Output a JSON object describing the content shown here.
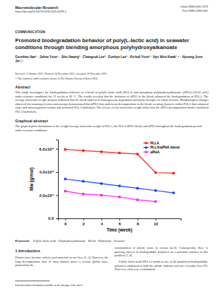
{
  "header": {
    "journal": "Macromolecular Research",
    "doi": "https://doi.org/10.1007/s13233-023-00239-1",
    "online_issn": "Online ISSN 2092-7673",
    "print_issn": "Print ISSN 1598-5032"
  },
  "article_type": "COMMUNICATION",
  "title": "Promoted biodegradation behavior of poly(L-lactic acid) in seawater conditions through blending amorphous polyhydroxyalkanoate",
  "authors": "Geonhee Han¹ · Juhee Yoon¹ · Jiho Hwang² · Changsuk Lee³ · Eunhye Lee³ · Kichull Yoon³ · Hyo Won Kwak¹,⁴ · Hyoung-Joon Jin¹,⁵",
  "dates": "Received: 11 October 2023 / Revised: 24 November 2023 / Accepted: 30 November 2023",
  "copyright": "© The Author(s), under exclusive licence to The Polymer Society of Korea 2024",
  "abstract": {
    "heading": "Abstract",
    "text": "This study investigates the biodegradation behavior of a blend of poly(L-lactic acid) (PLLA) and amorphous polyhydroxyalkanoate (aPHA) (50:50 wt%) under seawater conditions for 12 weeks at 30 °C. The results revealed that the inclusion of aPHA in the blend enhanced the biodegradation of PLLA. The average molecular weight analysis indicated that the blend underwent homogeneous degradation primarily through exo-chain scission. Morphological changes observed via scanning electron microscopy demonstrated that aPHA first underwent decomposition in the blend, creating channels within PLLA that enhanced water and microorganism contact and promoted PLLA hydrolysis. The release of low-molecular-weight acids from the aPHA decomposition further facilitated PLLA hydrolysis."
  },
  "graphical_abstract": {
    "heading": "Graphical abstract",
    "caption": "The graph depicts fluctuations in the weight-average molecular weight of PLLA, the PLLA/aPHA blend, and aPHA throughout the biodegradation period under seawater conditions."
  },
  "chart_data": {
    "type": "line",
    "x_label": "Time (week)",
    "y_label": "Mw (g/mol)",
    "x": [
      0,
      2,
      4,
      6,
      8,
      10,
      12
    ],
    "series": [
      {
        "name": "PLLA",
        "color": "#ff1a1a",
        "marker": "square",
        "values": [
          595000,
          585000,
          575000,
          565000,
          555000,
          395000,
          390000
        ]
      },
      {
        "name": "PLLA/aPHA blend",
        "color": "#1a3cff",
        "marker": "square",
        "values": [
          340000,
          320000,
          300000,
          280000,
          260000,
          240000,
          220000
        ]
      },
      {
        "name": "aPHA",
        "color": "#ff1aff",
        "marker": "square",
        "values": [
          235000,
          210000,
          200000,
          185000,
          160000,
          145000,
          null
        ]
      }
    ],
    "xlim": [
      -0.8,
      12.8
    ],
    "xticks": [
      0,
      2,
      4,
      6,
      8,
      10
    ],
    "ylim": [
      0,
      680000
    ],
    "yticks": [
      {
        "value": 0,
        "label": "0.0"
      },
      {
        "value": 200000,
        "label": "2.0x10⁵"
      },
      {
        "value": 400000,
        "label": "4.0x10⁵"
      },
      {
        "value": 600000,
        "label": "6.0x10⁵"
      }
    ],
    "grid": false,
    "legend": "upper right"
  },
  "keywords": {
    "heading": "Keywords",
    "text": "Poly(L-lactic acid) · Polyhydroxyalkanoate · Blend · Hydrolysis · Seawater"
  },
  "introduction": {
    "heading": "1 Introduction",
    "left": "Plastics have become widely used materials in our lives [1–3]. However, the long decomposition time of most plastics poses a serious global issue, particularly the",
    "right_1": "accumulation of plastic waste in oceans [4–6]. Consequently, there is growing interest in biodegradable polymers as a potential solution to this problem [7, 8].",
    "right_2": "Poly(L-lactic acid) (PLLA) stands as one of the prominent biodegradable polymers employed in both the plastic industry and our everyday lives [9]. However, each year, a substantial"
  },
  "footnote": "Extended author information available on the last page of the article"
}
